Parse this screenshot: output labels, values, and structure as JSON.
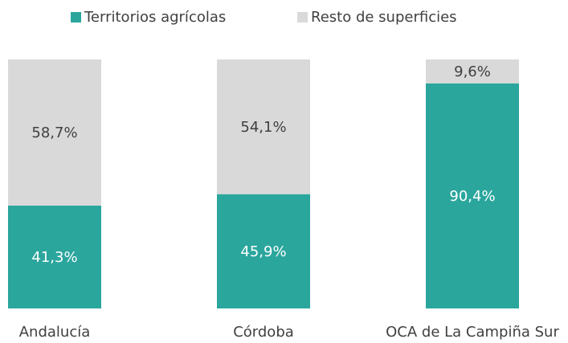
{
  "chart_data": {
    "type": "stacked_bar",
    "categories": [
      "Andalucía",
      "Córdoba",
      "OCA de La Campiña Sur"
    ],
    "series": [
      {
        "name": "Territorios agrícolas",
        "color": "#2ba69d",
        "values": [
          41.3,
          45.9,
          90.4
        ],
        "value_labels": [
          "41,3%",
          "45,9%",
          "90,4%"
        ]
      },
      {
        "name": "Resto de superficies",
        "color": "#d9d9d9",
        "values": [
          58.7,
          54.1,
          9.6
        ],
        "value_labels": [
          "58,7%",
          "54,1%",
          "9,6%"
        ]
      }
    ]
  }
}
